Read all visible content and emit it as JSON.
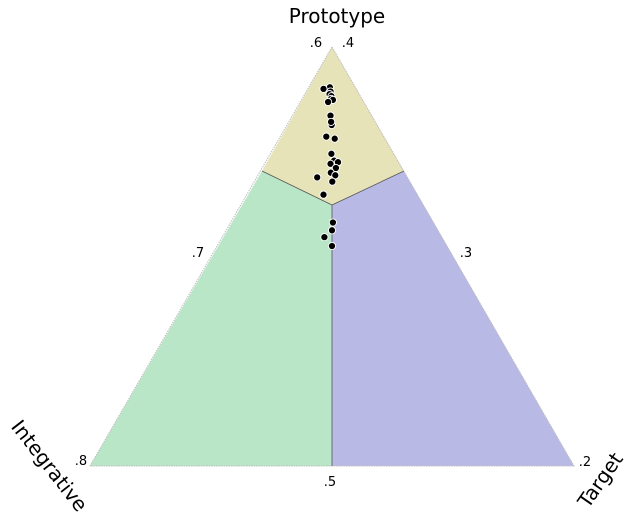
{
  "chart_data": {
    "type": "scatter",
    "subtype": "ternary",
    "vertex_labels": {
      "top": "Prototype",
      "left": "Integrative",
      "right": "Target"
    },
    "tick_labels": [
      {
        "text": ".6",
        "edge": "left",
        "t": 0.0
      },
      {
        "text": ".4",
        "edge": "right",
        "t": 0.0
      },
      {
        "text": ".7",
        "edge": "left",
        "t": 0.5
      },
      {
        "text": ".3",
        "edge": "right",
        "t": 0.5
      },
      {
        "text": ".8",
        "edge": "left",
        "t": 1.0
      },
      {
        "text": ".5",
        "edge": "bottom",
        "t": 0.5
      },
      {
        "text": ".2",
        "edge": "right",
        "t": 1.0
      }
    ],
    "regions": [
      {
        "name": "Prototype",
        "color": "#e6e3b9"
      },
      {
        "name": "Integrative",
        "color": "#b9e6c6"
      },
      {
        "name": "Target",
        "color": "#b9b9e6"
      }
    ],
    "axis_ranges": {
      "Prototype": [
        0.4,
        0.6
      ],
      "Integrative": [
        0.2,
        0.4
      ],
      "Target": [
        0.2,
        0.4
      ]
    },
    "grid": false,
    "points": [
      {
        "Prototype": 0.5615,
        "Integrative": 0.221,
        "Target": 0.2175
      },
      {
        "Prototype": 0.5575,
        "Integrative": 0.2225,
        "Target": 0.22
      },
      {
        "Prototype": 0.555,
        "Integrative": 0.2245,
        "Target": 0.2205
      },
      {
        "Prototype": 0.553,
        "Integrative": 0.224,
        "Target": 0.223
      },
      {
        "Prototype": 0.5505,
        "Integrative": 0.2255,
        "Target": 0.224
      },
      {
        "Prototype": 0.5495,
        "Integrative": 0.2245,
        "Target": 0.226
      },
      {
        "Prototype": 0.56,
        "Integrative": 0.227,
        "Target": 0.213
      },
      {
        "Prototype": 0.5475,
        "Integrative": 0.2295,
        "Target": 0.223
      },
      {
        "Prototype": 0.5345,
        "Integrative": 0.234,
        "Target": 0.2315
      },
      {
        "Prototype": 0.5255,
        "Integrative": 0.2375,
        "Target": 0.237
      },
      {
        "Prototype": 0.5285,
        "Integrative": 0.2365,
        "Target": 0.235
      },
      {
        "Prototype": 0.5145,
        "Integrative": 0.2475,
        "Target": 0.238
      },
      {
        "Prototype": 0.5125,
        "Integrative": 0.2415,
        "Target": 0.246
      },
      {
        "Prototype": 0.498,
        "Integrative": 0.2515,
        "Target": 0.2505
      },
      {
        "Prototype": 0.4915,
        "Integrative": 0.2525,
        "Target": 0.256
      },
      {
        "Prototype": 0.49,
        "Integrative": 0.25,
        "Target": 0.26
      },
      {
        "Prototype": 0.4885,
        "Integrative": 0.257,
        "Target": 0.2545
      },
      {
        "Prototype": 0.4845,
        "Integrative": 0.2545,
        "Target": 0.261
      },
      {
        "Prototype": 0.48,
        "Integrative": 0.261,
        "Target": 0.259
      },
      {
        "Prototype": 0.4755,
        "Integrative": 0.2745,
        "Target": 0.25
      },
      {
        "Prototype": 0.4775,
        "Integrative": 0.2585,
        "Target": 0.264
      },
      {
        "Prototype": 0.4715,
        "Integrative": 0.264,
        "Target": 0.2645
      },
      {
        "Prototype": 0.459,
        "Integrative": 0.2775,
        "Target": 0.2635
      },
      {
        "Prototype": 0.4325,
        "Integrative": 0.283,
        "Target": 0.2845
      },
      {
        "Prototype": 0.4185,
        "Integrative": 0.297,
        "Target": 0.2845
      },
      {
        "Prototype": 0.41,
        "Integrative": 0.295,
        "Target": 0.295
      },
      {
        "Prototype": 0.425,
        "Integrative": 0.2875,
        "Target": 0.2875
      }
    ]
  }
}
